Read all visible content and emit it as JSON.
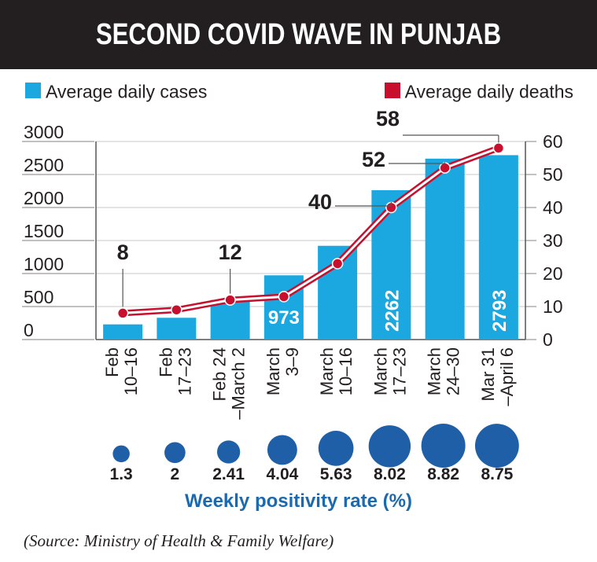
{
  "title": "SECOND COVID WAVE IN PUNJAB",
  "legend": {
    "cases": "Average daily cases",
    "deaths": "Average daily deaths"
  },
  "colors": {
    "cases": "#1ba8e0",
    "deaths": "#c8102e",
    "positivity": "#1f5fa8",
    "header_bg": "#231f20",
    "positivity_label": "#1b6ab0"
  },
  "positivity_label": "Weekly positivity rate (%)",
  "source": "(Source: Ministry of Health & Family Welfare)",
  "chart_data": {
    "type": "bar",
    "title": "SECOND COVID WAVE IN PUNJAB",
    "categories": [
      [
        "Feb",
        "10–16"
      ],
      [
        "Feb",
        "17–23"
      ],
      [
        "Feb 24",
        "–March 2"
      ],
      [
        "March",
        "3–9"
      ],
      [
        "March",
        "10–16"
      ],
      [
        "March",
        "17–23"
      ],
      [
        "March",
        "24–30"
      ],
      [
        "Mar 31",
        "–April 6"
      ]
    ],
    "series": [
      {
        "name": "Average daily cases",
        "type": "bar",
        "axis": "left",
        "values": [
          230,
          330,
          600,
          973,
          1420,
          2262,
          2740,
          2793
        ]
      },
      {
        "name": "Average daily deaths",
        "type": "line",
        "axis": "right",
        "values": [
          8,
          9,
          12,
          13,
          23,
          40,
          52,
          58
        ]
      }
    ],
    "weekly_positivity_rate": [
      1.3,
      2,
      2.41,
      4.04,
      5.63,
      8.02,
      8.82,
      8.75
    ],
    "y_left": {
      "min": 0,
      "max": 3000,
      "ticks": [
        0,
        500,
        1000,
        1500,
        2000,
        2500,
        3000
      ]
    },
    "y_right": {
      "min": 0,
      "max": 60,
      "ticks": [
        0,
        10,
        20,
        30,
        40,
        50,
        60
      ]
    },
    "bar_labels": [
      {
        "index": 3,
        "text": "973"
      },
      {
        "index": 5,
        "text": "2262"
      },
      {
        "index": 7,
        "text": "2793"
      }
    ],
    "death_callouts": [
      {
        "index": 0,
        "text": "8"
      },
      {
        "index": 2,
        "text": "12"
      },
      {
        "index": 5,
        "text": "40"
      },
      {
        "index": 6,
        "text": "52"
      },
      {
        "index": 7,
        "text": "58"
      }
    ],
    "grid": true
  }
}
